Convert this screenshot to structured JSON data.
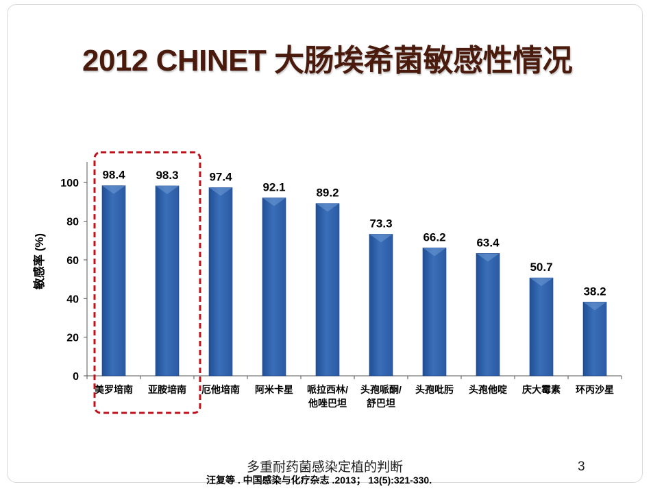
{
  "slide": {
    "title": "2012 CHINET 大肠埃希菌敏感性情况",
    "footer_topic": "多重耐药菌感染定植的判断",
    "page_number": "3",
    "citation": "汪复等 . 中国感染与化疗杂志 .2013； 13(5):321-330."
  },
  "chart_data": {
    "type": "bar",
    "categories": [
      "美罗培南",
      "亚胺培南",
      "厄他培南",
      "阿米卡星",
      "哌拉西林/他唑巴坦",
      "头孢哌酮/舒巴坦",
      "头孢吡肟",
      "头孢他啶",
      "庆大霉素",
      "环丙沙星"
    ],
    "category_lines": [
      [
        "美罗培南"
      ],
      [
        "亚胺培南"
      ],
      [
        "厄他培南"
      ],
      [
        "阿米卡星"
      ],
      [
        "哌拉西林/",
        "他唑巴坦"
      ],
      [
        "头孢哌酮/",
        "舒巴坦"
      ],
      [
        "头孢吡肟"
      ],
      [
        "头孢他啶"
      ],
      [
        "庆大霉素"
      ],
      [
        "环丙沙星"
      ]
    ],
    "values": [
      98.4,
      98.3,
      97.4,
      92.1,
      89.2,
      73.3,
      66.2,
      63.4,
      50.7,
      38.2
    ],
    "value_labels": [
      "98.4",
      "98.3",
      "97.4",
      "92.1",
      "89.2",
      "73.3",
      "66.2",
      "63.4",
      "50.7",
      "38.2"
    ],
    "ylabel": "敏感率 (%)",
    "xlabel": "",
    "ylim": [
      0,
      110
    ],
    "yticks": [
      0,
      20,
      40,
      60,
      80,
      100
    ],
    "grid": false,
    "bar_color": "#3a6fb8",
    "highlight": {
      "categories": [
        "美罗培南",
        "亚胺培南"
      ],
      "color": "#c0101a",
      "style": "dashed-box"
    }
  }
}
